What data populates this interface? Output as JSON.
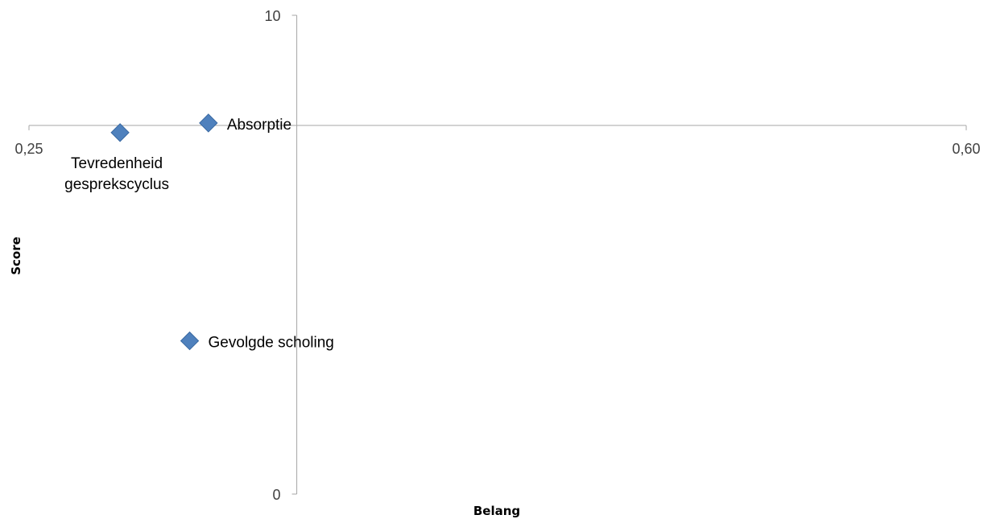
{
  "chart_data": {
    "type": "scatter",
    "title": "",
    "xlabel": "Belang",
    "ylabel": "Score",
    "xlim": [
      0.25,
      0.6
    ],
    "ylim": [
      0,
      10
    ],
    "x_tick_labels": [
      "0,25",
      "0,60"
    ],
    "y_tick_labels": [
      "0",
      "10"
    ],
    "x_axis_crossing": 7.7,
    "y_axis_crossing": 0.35,
    "marker": "diamond",
    "marker_color": "#4F81BD",
    "grid": false,
    "legend": false,
    "points": [
      {
        "label_lines": [
          "Absorptie"
        ],
        "x": 0.317,
        "y": 7.75,
        "label_position": "right"
      },
      {
        "label_lines": [
          "Tevredenheid",
          "gesprekscyclus"
        ],
        "x": 0.284,
        "y": 7.55,
        "label_position": "below"
      },
      {
        "label_lines": [
          "Gevolgde scholing"
        ],
        "x": 0.31,
        "y": 3.2,
        "label_position": "right"
      }
    ]
  }
}
